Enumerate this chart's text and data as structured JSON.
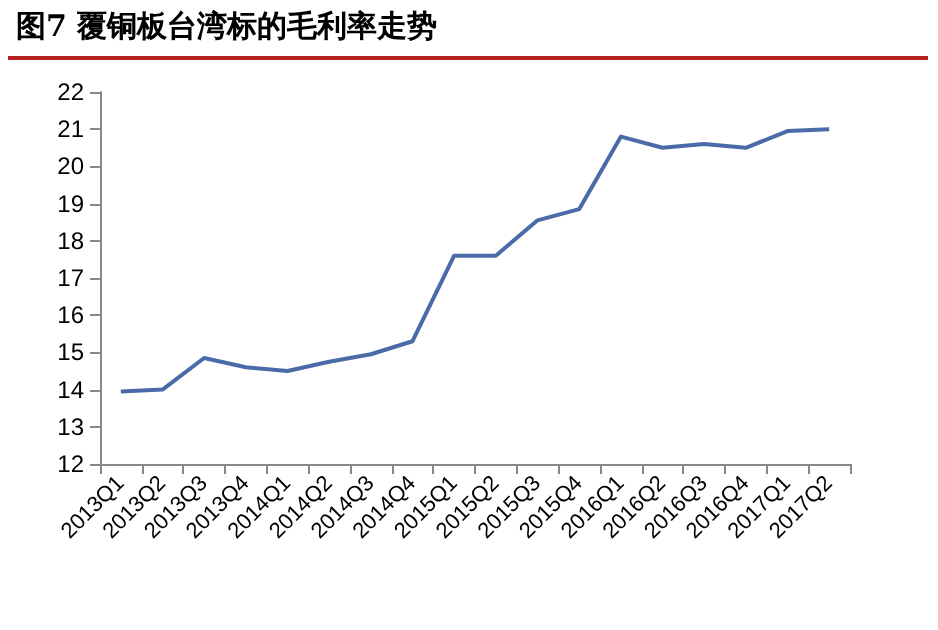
{
  "chart_data": {
    "type": "line",
    "title": "图7  覆铜板台湾标的毛利率走势",
    "categories": [
      "2013Q1",
      "2013Q2",
      "2013Q3",
      "2013Q4",
      "2014Q1",
      "2014Q2",
      "2014Q3",
      "2014Q4",
      "2015Q1",
      "2015Q2",
      "2015Q3",
      "2015Q4",
      "2016Q1",
      "2016Q2",
      "2016Q3",
      "2016Q4",
      "2017Q1",
      "2017Q2"
    ],
    "series": [
      {
        "color": "#4a6ba8",
        "values": [
          13.95,
          14.0,
          14.85,
          14.6,
          14.5,
          14.75,
          14.95,
          15.3,
          17.6,
          17.6,
          18.55,
          18.85,
          20.8,
          20.5,
          20.6,
          20.5,
          20.95,
          21.0
        ]
      }
    ],
    "ylim": [
      12,
      22
    ],
    "yticks": [
      12,
      13,
      14,
      15,
      16,
      17,
      18,
      19,
      20,
      21,
      22
    ],
    "grid": false,
    "marker": "none",
    "line_style": "solid"
  }
}
